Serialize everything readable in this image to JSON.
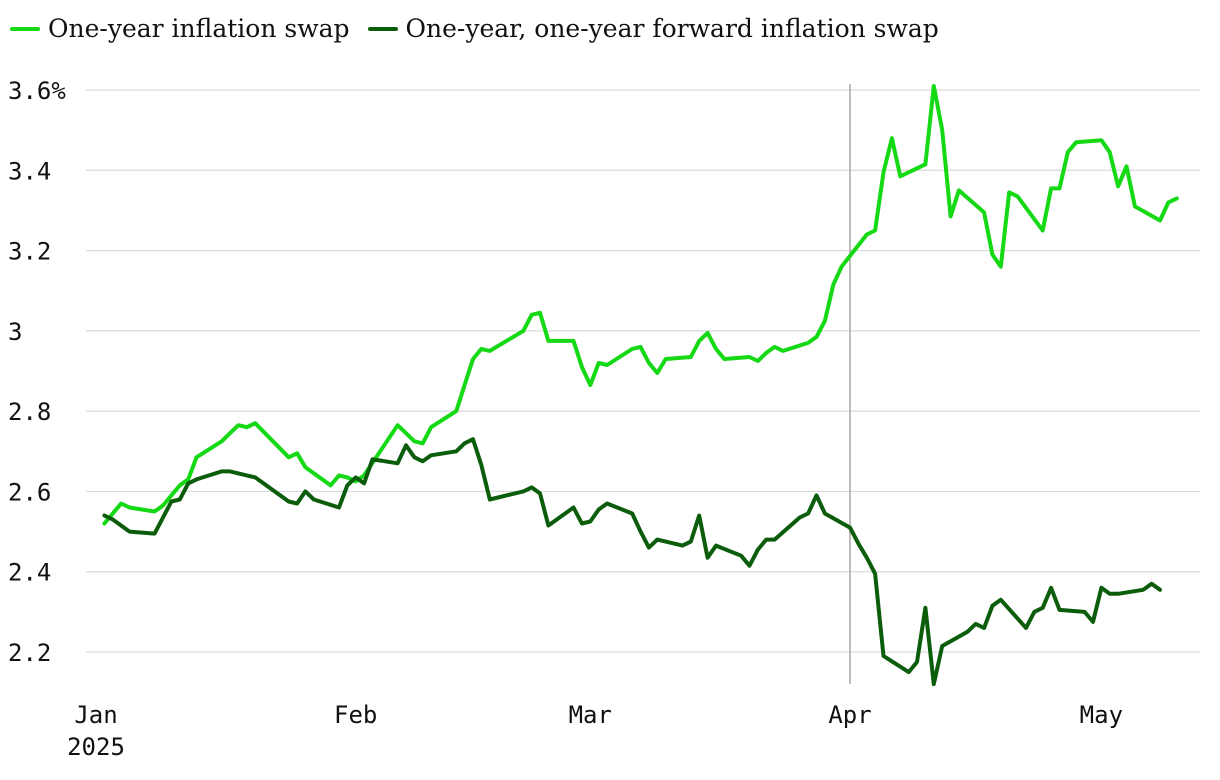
{
  "legend": [
    {
      "label": "One-year inflation swap",
      "color": "#14d914"
    },
    {
      "label": "One-year, one-year forward inflation swap",
      "color": "#0b5c0b"
    }
  ],
  "chart_data": {
    "type": "line",
    "title": "",
    "xlabel": "",
    "ylabel": "",
    "ylim": [
      2.1,
      3.62
    ],
    "y_ticks": [
      {
        "value": 3.6,
        "label": "3.6%"
      },
      {
        "value": 3.4,
        "label": "3.4"
      },
      {
        "value": 3.2,
        "label": "3.2"
      },
      {
        "value": 3.0,
        "label": "3"
      },
      {
        "value": 2.8,
        "label": "2.8"
      },
      {
        "value": 2.6,
        "label": "2.6"
      },
      {
        "value": 2.4,
        "label": "2.4"
      },
      {
        "value": 2.2,
        "label": "2.2"
      }
    ],
    "x_ticks": [
      {
        "date": "2025-01-01",
        "label": "Jan",
        "sublabel": "2025"
      },
      {
        "date": "2025-02-01",
        "label": "Feb"
      },
      {
        "date": "2025-03-01",
        "label": "Mar"
      },
      {
        "date": "2025-04-01",
        "label": "Apr"
      },
      {
        "date": "2025-05-01",
        "label": "May"
      }
    ],
    "xlim": [
      "2025-01-01",
      "2025-05-08"
    ],
    "reference_line": "2025-04-01",
    "grid": "horizontal",
    "legend_position": "top-left",
    "series": [
      {
        "name": "One-year inflation swap",
        "color": "#14d914",
        "points": [
          [
            "2025-01-02",
            2.52
          ],
          [
            "2025-01-03",
            2.545
          ],
          [
            "2025-01-04",
            2.57
          ],
          [
            "2025-01-05",
            2.56
          ],
          [
            "2025-01-08",
            2.55
          ],
          [
            "2025-01-09",
            2.565
          ],
          [
            "2025-01-10",
            2.59
          ],
          [
            "2025-01-11",
            2.615
          ],
          [
            "2025-01-12",
            2.63
          ],
          [
            "2025-01-13",
            2.685
          ],
          [
            "2025-01-16",
            2.725
          ],
          [
            "2025-01-17",
            2.745
          ],
          [
            "2025-01-18",
            2.765
          ],
          [
            "2025-01-19",
            2.76
          ],
          [
            "2025-01-20",
            2.77
          ],
          [
            "2025-01-24",
            2.685
          ],
          [
            "2025-01-25",
            2.695
          ],
          [
            "2025-01-26",
            2.66
          ],
          [
            "2025-01-29",
            2.615
          ],
          [
            "2025-01-30",
            2.64
          ],
          [
            "2025-01-31",
            2.635
          ],
          [
            "2025-02-01",
            2.625
          ],
          [
            "2025-02-02",
            2.64
          ],
          [
            "2025-02-06",
            2.765
          ],
          [
            "2025-02-07",
            2.745
          ],
          [
            "2025-02-08",
            2.725
          ],
          [
            "2025-02-09",
            2.72
          ],
          [
            "2025-02-10",
            2.76
          ],
          [
            "2025-02-13",
            2.8
          ],
          [
            "2025-02-14",
            2.865
          ],
          [
            "2025-02-15",
            2.93
          ],
          [
            "2025-02-16",
            2.955
          ],
          [
            "2025-02-17",
            2.95
          ],
          [
            "2025-02-21",
            3.0
          ],
          [
            "2025-02-22",
            3.04
          ],
          [
            "2025-02-23",
            3.045
          ],
          [
            "2025-02-24",
            2.975
          ],
          [
            "2025-02-27",
            2.975
          ],
          [
            "2025-02-28",
            2.91
          ],
          [
            "2025-03-01",
            2.865
          ],
          [
            "2025-03-02",
            2.92
          ],
          [
            "2025-03-03",
            2.915
          ],
          [
            "2025-03-06",
            2.955
          ],
          [
            "2025-03-07",
            2.96
          ],
          [
            "2025-03-08",
            2.92
          ],
          [
            "2025-03-09",
            2.895
          ],
          [
            "2025-03-10",
            2.93
          ],
          [
            "2025-03-13",
            2.935
          ],
          [
            "2025-03-14",
            2.975
          ],
          [
            "2025-03-15",
            2.995
          ],
          [
            "2025-03-16",
            2.955
          ],
          [
            "2025-03-17",
            2.93
          ],
          [
            "2025-03-20",
            2.935
          ],
          [
            "2025-03-21",
            2.925
          ],
          [
            "2025-03-22",
            2.945
          ],
          [
            "2025-03-23",
            2.96
          ],
          [
            "2025-03-24",
            2.95
          ],
          [
            "2025-03-27",
            2.97
          ],
          [
            "2025-03-28",
            2.985
          ],
          [
            "2025-03-29",
            3.025
          ],
          [
            "2025-03-30",
            3.115
          ],
          [
            "2025-03-31",
            3.16
          ],
          [
            "2025-04-03",
            3.24
          ],
          [
            "2025-04-04",
            3.25
          ],
          [
            "2025-04-05",
            3.395
          ],
          [
            "2025-04-06",
            3.48
          ],
          [
            "2025-04-07",
            3.385
          ],
          [
            "2025-04-10",
            3.415
          ],
          [
            "2025-04-11",
            3.61
          ],
          [
            "2025-04-12",
            3.5
          ],
          [
            "2025-04-13",
            3.285
          ],
          [
            "2025-04-14",
            3.35
          ],
          [
            "2025-04-17",
            3.295
          ],
          [
            "2025-04-18",
            3.19
          ],
          [
            "2025-04-19",
            3.16
          ],
          [
            "2025-04-20",
            3.345
          ],
          [
            "2025-04-21",
            3.335
          ],
          [
            "2025-04-24",
            3.25
          ],
          [
            "2025-04-25",
            3.355
          ],
          [
            "2025-04-26",
            3.355
          ],
          [
            "2025-04-27",
            3.445
          ],
          [
            "2025-04-28",
            3.47
          ],
          [
            "2025-05-01",
            3.475
          ],
          [
            "2025-05-02",
            3.445
          ],
          [
            "2025-05-03",
            3.36
          ],
          [
            "2025-05-04",
            3.41
          ],
          [
            "2025-05-05",
            3.31
          ],
          [
            "2025-05-08",
            3.275
          ],
          [
            "2025-05-09",
            3.32
          ],
          [
            "2025-05-10",
            3.33
          ]
        ]
      },
      {
        "name": "One-year, one-year forward inflation swap",
        "color": "#0b5c0b",
        "points": [
          [
            "2025-01-02",
            2.54
          ],
          [
            "2025-01-03",
            2.53
          ],
          [
            "2025-01-04",
            2.515
          ],
          [
            "2025-01-05",
            2.5
          ],
          [
            "2025-01-08",
            2.495
          ],
          [
            "2025-01-09",
            2.535
          ],
          [
            "2025-01-10",
            2.575
          ],
          [
            "2025-01-11",
            2.58
          ],
          [
            "2025-01-12",
            2.62
          ],
          [
            "2025-01-13",
            2.63
          ],
          [
            "2025-01-16",
            2.65
          ],
          [
            "2025-01-17",
            2.65
          ],
          [
            "2025-01-18",
            2.645
          ],
          [
            "2025-01-19",
            2.64
          ],
          [
            "2025-01-20",
            2.635
          ],
          [
            "2025-01-24",
            2.575
          ],
          [
            "2025-01-25",
            2.57
          ],
          [
            "2025-01-26",
            2.6
          ],
          [
            "2025-01-27",
            2.58
          ],
          [
            "2025-01-30",
            2.56
          ],
          [
            "2025-01-31",
            2.615
          ],
          [
            "2025-02-01",
            2.635
          ],
          [
            "2025-02-02",
            2.62
          ],
          [
            "2025-02-03",
            2.68
          ],
          [
            "2025-02-06",
            2.67
          ],
          [
            "2025-02-07",
            2.715
          ],
          [
            "2025-02-08",
            2.685
          ],
          [
            "2025-02-09",
            2.675
          ],
          [
            "2025-02-10",
            2.69
          ],
          [
            "2025-02-13",
            2.7
          ],
          [
            "2025-02-14",
            2.72
          ],
          [
            "2025-02-15",
            2.73
          ],
          [
            "2025-02-16",
            2.665
          ],
          [
            "2025-02-17",
            2.58
          ],
          [
            "2025-02-21",
            2.6
          ],
          [
            "2025-02-22",
            2.61
          ],
          [
            "2025-02-23",
            2.595
          ],
          [
            "2025-02-24",
            2.515
          ],
          [
            "2025-02-27",
            2.56
          ],
          [
            "2025-02-28",
            2.52
          ],
          [
            "2025-03-01",
            2.525
          ],
          [
            "2025-03-02",
            2.555
          ],
          [
            "2025-03-03",
            2.57
          ],
          [
            "2025-03-06",
            2.545
          ],
          [
            "2025-03-07",
            2.5
          ],
          [
            "2025-03-08",
            2.46
          ],
          [
            "2025-03-09",
            2.48
          ],
          [
            "2025-03-12",
            2.465
          ],
          [
            "2025-03-13",
            2.475
          ],
          [
            "2025-03-14",
            2.54
          ],
          [
            "2025-03-15",
            2.435
          ],
          [
            "2025-03-16",
            2.465
          ],
          [
            "2025-03-19",
            2.44
          ],
          [
            "2025-03-20",
            2.415
          ],
          [
            "2025-03-21",
            2.455
          ],
          [
            "2025-03-22",
            2.48
          ],
          [
            "2025-03-23",
            2.48
          ],
          [
            "2025-03-26",
            2.535
          ],
          [
            "2025-03-27",
            2.545
          ],
          [
            "2025-03-28",
            2.59
          ],
          [
            "2025-03-29",
            2.545
          ],
          [
            "2025-04-01",
            2.51
          ],
          [
            "2025-04-02",
            2.47
          ],
          [
            "2025-04-03",
            2.435
          ],
          [
            "2025-04-04",
            2.395
          ],
          [
            "2025-04-05",
            2.19
          ],
          [
            "2025-04-08",
            2.15
          ],
          [
            "2025-04-09",
            2.175
          ],
          [
            "2025-04-10",
            2.31
          ],
          [
            "2025-04-11",
            2.12
          ],
          [
            "2025-04-12",
            2.215
          ],
          [
            "2025-04-15",
            2.25
          ],
          [
            "2025-04-16",
            2.27
          ],
          [
            "2025-04-17",
            2.26
          ],
          [
            "2025-04-18",
            2.315
          ],
          [
            "2025-04-19",
            2.33
          ],
          [
            "2025-04-22",
            2.26
          ],
          [
            "2025-04-23",
            2.3
          ],
          [
            "2025-04-24",
            2.31
          ],
          [
            "2025-04-25",
            2.36
          ],
          [
            "2025-04-26",
            2.305
          ],
          [
            "2025-04-29",
            2.3
          ],
          [
            "2025-04-30",
            2.275
          ],
          [
            "2025-05-01",
            2.36
          ],
          [
            "2025-05-02",
            2.345
          ],
          [
            "2025-05-03",
            2.345
          ],
          [
            "2025-05-06",
            2.355
          ],
          [
            "2025-05-07",
            2.37
          ],
          [
            "2025-05-08",
            2.355
          ]
        ]
      }
    ]
  }
}
